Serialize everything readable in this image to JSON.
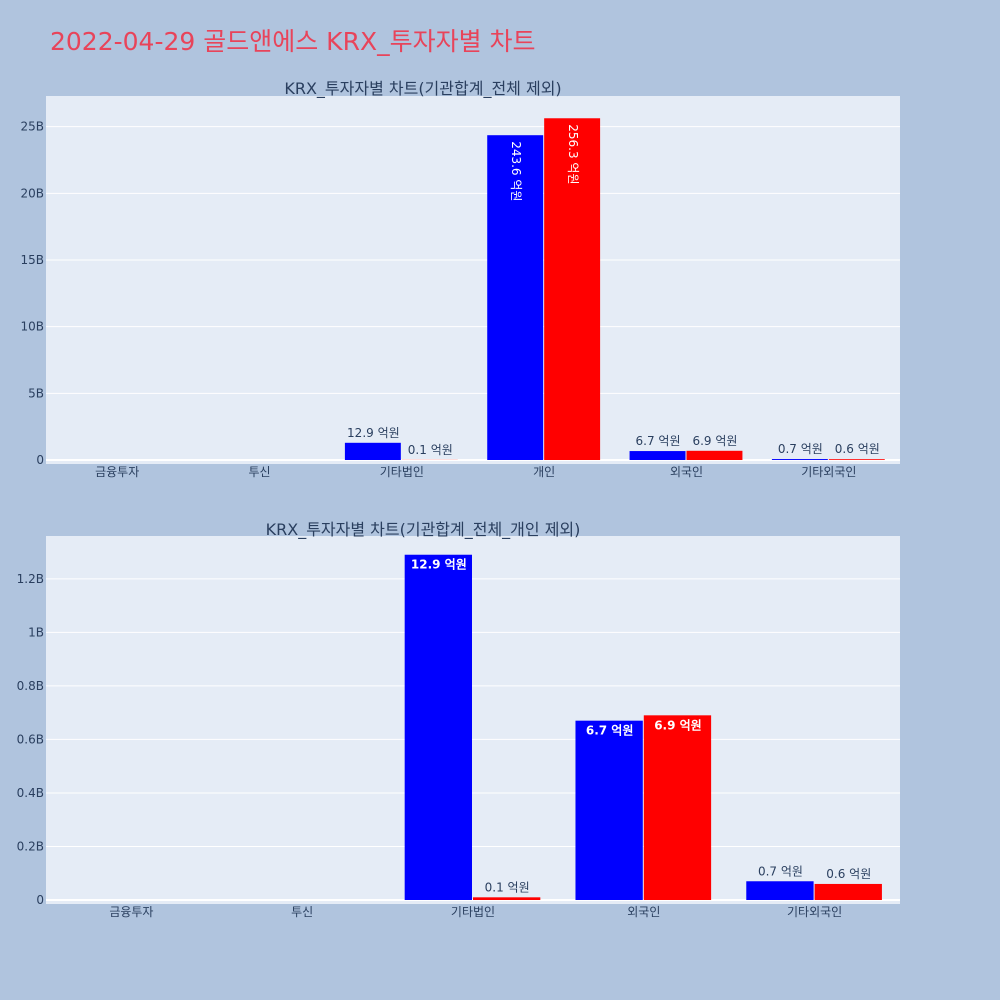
{
  "page_title": "2022-04-29 골드앤에스 KRX_투자자별 차트",
  "colors": {
    "buy": "#0000ff",
    "sell": "#ff0000",
    "plot_bg": "#e5ecf6",
    "page_bg": "#b0c4de",
    "title": "#e8445a"
  },
  "chart_data": [
    {
      "type": "bar",
      "title": "KRX_투자자별 차트(기관합계_전체 제외)",
      "categories": [
        "금융투자",
        "투신",
        "기타법인",
        "개인",
        "외국인",
        "기타외국인"
      ],
      "series": [
        {
          "values": [
            0,
            0,
            1290000000,
            24360000000,
            670000000,
            70000000
          ],
          "labels": [
            "",
            "",
            "12.9 억원",
            "243.6 억원",
            "6.7 억원",
            "0.7 억원"
          ]
        },
        {
          "values": [
            0,
            0,
            10000000,
            25630000000,
            690000000,
            60000000
          ],
          "labels": [
            "",
            "",
            "0.1 억원",
            "256.3 억원",
            "6.9 억원",
            "0.6 억원"
          ]
        }
      ],
      "yticks": [
        0,
        5000000000,
        10000000000,
        15000000000,
        20000000000,
        25000000000
      ],
      "ytick_labels": [
        "0",
        "5B",
        "10B",
        "15B",
        "20B",
        "25B"
      ],
      "ylim": [
        0,
        27300000000
      ],
      "grid": true
    },
    {
      "type": "bar",
      "title": "KRX_투자자별 차트(기관합계_전체_개인 제외)",
      "categories": [
        "금융투자",
        "투신",
        "기타법인",
        "외국인",
        "기타외국인"
      ],
      "series": [
        {
          "values": [
            0,
            0,
            1290000000,
            670000000,
            70000000
          ],
          "labels": [
            "",
            "",
            "12.9 억원",
            "6.7 억원",
            "0.7 억원"
          ]
        },
        {
          "values": [
            0,
            0,
            10000000,
            690000000,
            60000000
          ],
          "labels": [
            "",
            "",
            "0.1 억원",
            "6.9 억원",
            "0.6 억원"
          ]
        }
      ],
      "yticks": [
        0,
        200000000,
        400000000,
        600000000,
        800000000,
        1000000000,
        1200000000
      ],
      "ytick_labels": [
        "0",
        "0.2B",
        "0.4B",
        "0.6B",
        "0.8B",
        "1B",
        "1.2B"
      ],
      "ylim": [
        0,
        1360000000
      ],
      "grid": true
    }
  ]
}
